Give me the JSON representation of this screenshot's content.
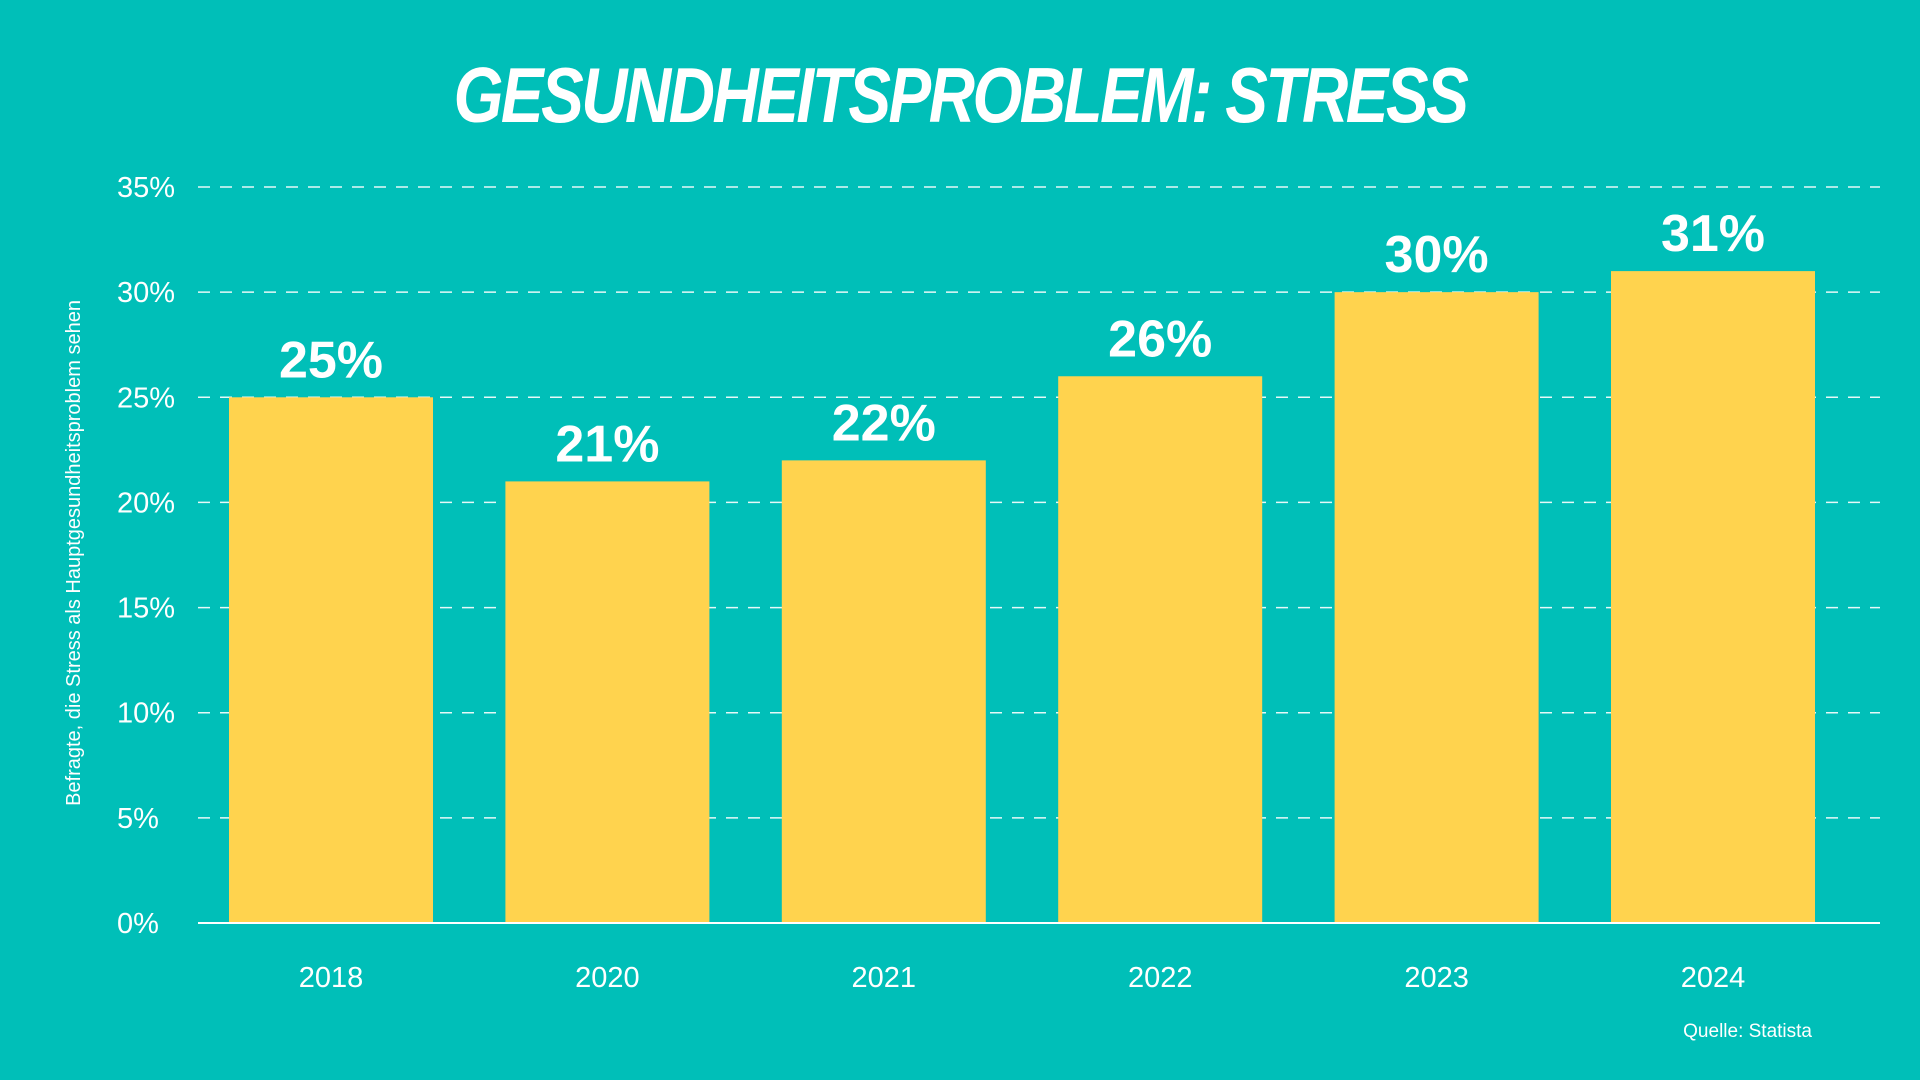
{
  "chart_data": {
    "type": "bar",
    "title": "GESUNDHEITSPROBLEM: STRESS",
    "ylabel": "Befragte, die Stress als Hauptgesundheitsproblem sehen",
    "xlabel": "",
    "categories": [
      "2018",
      "2020",
      "2021",
      "2022",
      "2023",
      "2024"
    ],
    "values": [
      25,
      21,
      22,
      26,
      30,
      31
    ],
    "data_labels": [
      "25%",
      "21%",
      "22%",
      "26%",
      "30%",
      "31%"
    ],
    "ylim": [
      0,
      35
    ],
    "yticks": [
      0,
      5,
      10,
      15,
      20,
      25,
      30,
      35
    ],
    "ytick_labels": [
      "0%",
      "5%",
      "10%",
      "15%",
      "20%",
      "25%",
      "30%",
      "35%"
    ],
    "grid": true,
    "bar_color": "#FFD34E",
    "background_color": "#00BFB8",
    "text_color": "#FFFFFF"
  },
  "source": "Quelle: Statista"
}
